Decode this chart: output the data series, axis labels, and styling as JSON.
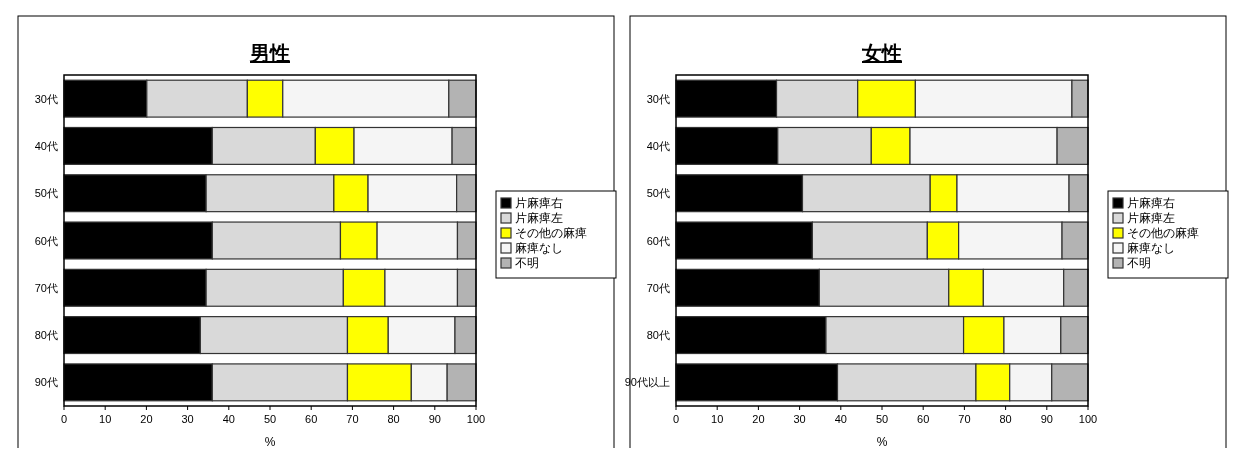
{
  "chart_data": [
    {
      "type": "bar",
      "title": "男性",
      "orientation": "horizontal",
      "stacked": true,
      "xlabel": "%",
      "categories": [
        "30代",
        "40代",
        "50代",
        "60代",
        "70代",
        "80代",
        "90代"
      ],
      "xlim": [
        0,
        100
      ],
      "xticks": [
        0,
        10,
        20,
        30,
        40,
        50,
        60,
        70,
        80,
        90,
        100
      ],
      "legend": "right",
      "grid": false,
      "series": [
        {
          "name": "片麻痺右",
          "color": "#000000",
          "values": [
            20.1,
            36.0,
            34.5,
            36.0,
            34.5,
            33.1,
            36.0
          ]
        },
        {
          "name": "片麻痺左",
          "color": "#d9d9d9",
          "values": [
            24.4,
            25.0,
            31.0,
            31.1,
            33.3,
            35.7,
            32.8
          ]
        },
        {
          "name": "その他の麻痺",
          "color": "#ffff00",
          "values": [
            8.6,
            9.4,
            8.3,
            8.9,
            10.1,
            9.9,
            15.5
          ]
        },
        {
          "name": "麻痺なし",
          "color": "#f5f5f5",
          "values": [
            40.3,
            23.8,
            21.5,
            19.5,
            17.6,
            16.2,
            8.7
          ]
        },
        {
          "name": "不明",
          "color": "#b3b3b3",
          "values": [
            6.6,
            5.8,
            4.7,
            4.5,
            4.5,
            5.1,
            7.0
          ]
        }
      ]
    },
    {
      "type": "bar",
      "title": "女性",
      "orientation": "horizontal",
      "stacked": true,
      "xlabel": "%",
      "categories": [
        "30代",
        "40代",
        "50代",
        "60代",
        "70代",
        "80代",
        "90代以上"
      ],
      "xlim": [
        0,
        100
      ],
      "xticks": [
        0,
        10,
        20,
        30,
        40,
        50,
        60,
        70,
        80,
        90,
        100
      ],
      "legend": "right",
      "grid": false,
      "series": [
        {
          "name": "片麻痺右",
          "color": "#000000",
          "values": [
            24.4,
            24.7,
            30.7,
            33.1,
            34.8,
            36.4,
            39.2
          ]
        },
        {
          "name": "片麻痺左",
          "color": "#d9d9d9",
          "values": [
            19.7,
            22.7,
            31.0,
            27.9,
            31.4,
            33.4,
            33.6
          ]
        },
        {
          "name": "その他の麻痺",
          "color": "#ffff00",
          "values": [
            14.0,
            9.4,
            6.5,
            7.6,
            8.4,
            9.8,
            8.2
          ]
        },
        {
          "name": "麻痺なし",
          "color": "#f5f5f5",
          "values": [
            38.0,
            35.7,
            27.2,
            25.1,
            19.5,
            13.8,
            10.2
          ]
        },
        {
          "name": "不明",
          "color": "#b3b3b3",
          "values": [
            3.9,
            7.5,
            4.6,
            6.3,
            5.9,
            6.6,
            8.8
          ]
        }
      ]
    }
  ]
}
